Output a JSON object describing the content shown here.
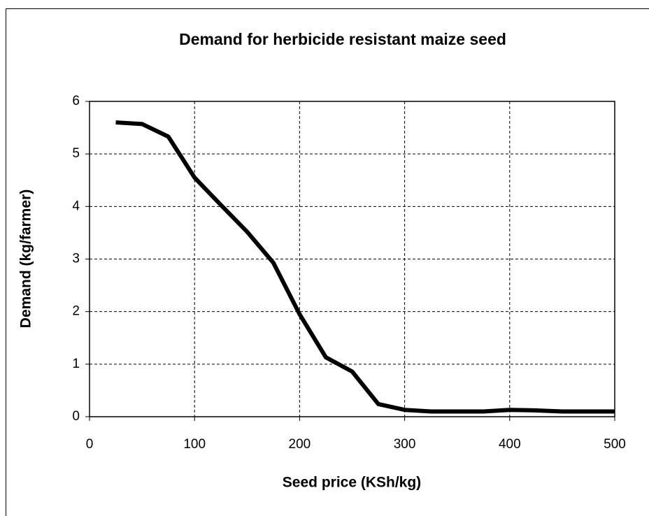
{
  "chart_data": {
    "type": "line",
    "title": "Demand for herbicide resistant maize seed",
    "xlabel": "Seed price (KSh/kg)",
    "ylabel": "Demand (kg/farmer)",
    "x": [
      25,
      50,
      75,
      100,
      125,
      150,
      175,
      200,
      225,
      250,
      275,
      300,
      325,
      350,
      375,
      400,
      425,
      450,
      475,
      500
    ],
    "series": [
      {
        "name": "Demand",
        "color": "#000000",
        "values": [
          5.6,
          5.57,
          5.33,
          4.55,
          4.03,
          3.52,
          2.93,
          1.95,
          1.13,
          0.86,
          0.24,
          0.13,
          0.1,
          0.1,
          0.1,
          0.13,
          0.12,
          0.1,
          0.1,
          0.1
        ]
      }
    ],
    "xlim": [
      0,
      500
    ],
    "xticks": [
      0,
      100,
      200,
      300,
      400,
      500
    ],
    "ylim": [
      0,
      6
    ],
    "yticks": [
      0,
      1,
      2,
      3,
      4,
      5,
      6
    ],
    "grid": true
  }
}
